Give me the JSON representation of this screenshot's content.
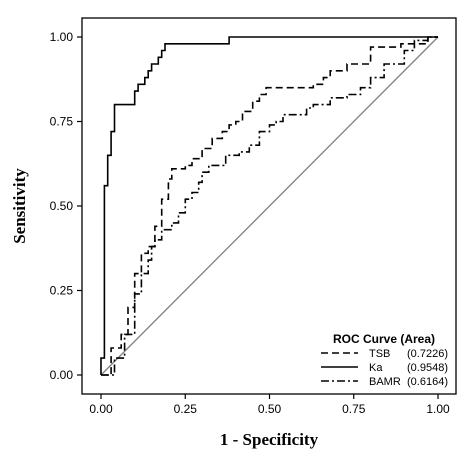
{
  "chart_data": {
    "type": "line",
    "xlabel": "1 - Specificity",
    "ylabel": "Sensitivity",
    "xlim": [
      0,
      1
    ],
    "ylim": [
      0,
      1
    ],
    "x_ticks": [
      "0.00",
      "0.25",
      "0.50",
      "0.75",
      "1.00"
    ],
    "y_ticks": [
      "0.00",
      "0.25",
      "0.50",
      "0.75",
      "1.00"
    ],
    "grid": false,
    "legend": {
      "title": "ROC Curve (Area)",
      "position": "bottom-right",
      "entries": [
        {
          "name": "TSB",
          "value": "(0.7226)",
          "dash": "dashed"
        },
        {
          "name": "Ka",
          "value": "(0.9548)",
          "dash": "solid"
        },
        {
          "name": "BAMR",
          "value": "(0.6164)",
          "dash": "dashdot"
        }
      ]
    },
    "reference_line": {
      "x": [
        0,
        1
      ],
      "y": [
        0,
        1
      ],
      "color": "#808080"
    },
    "series": [
      {
        "name": "TSB",
        "dash": "dashed",
        "color": "#000000",
        "x": [
          0,
          0.03,
          0.03,
          0.06,
          0.06,
          0.08,
          0.08,
          0.1,
          0.1,
          0.12,
          0.12,
          0.14,
          0.14,
          0.16,
          0.16,
          0.18,
          0.18,
          0.2,
          0.2,
          0.21,
          0.21,
          0.25,
          0.25,
          0.27,
          0.27,
          0.3,
          0.3,
          0.33,
          0.33,
          0.36,
          0.36,
          0.38,
          0.38,
          0.4,
          0.4,
          0.42,
          0.42,
          0.45,
          0.45,
          0.47,
          0.47,
          0.49,
          0.49,
          0.63,
          0.63,
          0.66,
          0.66,
          0.68,
          0.68,
          0.73,
          0.73,
          0.8,
          0.8,
          0.89,
          0.89,
          0.97,
          0.97,
          1.0
        ],
        "y": [
          0,
          0,
          0.08,
          0.08,
          0.12,
          0.12,
          0.2,
          0.2,
          0.3,
          0.3,
          0.36,
          0.36,
          0.38,
          0.38,
          0.44,
          0.44,
          0.52,
          0.52,
          0.58,
          0.58,
          0.61,
          0.61,
          0.62,
          0.62,
          0.64,
          0.64,
          0.67,
          0.67,
          0.7,
          0.7,
          0.72,
          0.72,
          0.74,
          0.74,
          0.75,
          0.75,
          0.78,
          0.78,
          0.81,
          0.81,
          0.83,
          0.83,
          0.85,
          0.85,
          0.86,
          0.86,
          0.88,
          0.88,
          0.9,
          0.9,
          0.92,
          0.92,
          0.97,
          0.97,
          0.98,
          0.98,
          1.0,
          1.0
        ]
      },
      {
        "name": "Ka",
        "dash": "solid",
        "color": "#000000",
        "x": [
          0,
          0,
          0.01,
          0.01,
          0.02,
          0.02,
          0.03,
          0.03,
          0.04,
          0.04,
          0.1,
          0.1,
          0.11,
          0.11,
          0.13,
          0.13,
          0.14,
          0.14,
          0.15,
          0.15,
          0.17,
          0.17,
          0.18,
          0.18,
          0.19,
          0.19,
          0.38,
          0.38,
          1.0
        ],
        "y": [
          0,
          0.05,
          0.05,
          0.56,
          0.56,
          0.65,
          0.65,
          0.72,
          0.72,
          0.8,
          0.8,
          0.84,
          0.84,
          0.86,
          0.86,
          0.88,
          0.88,
          0.9,
          0.9,
          0.92,
          0.92,
          0.94,
          0.94,
          0.96,
          0.96,
          0.98,
          0.98,
          1.0,
          1.0
        ]
      },
      {
        "name": "BAMR",
        "dash": "dashdot",
        "color": "#000000",
        "x": [
          0,
          0.04,
          0.04,
          0.07,
          0.07,
          0.1,
          0.1,
          0.12,
          0.12,
          0.14,
          0.14,
          0.15,
          0.15,
          0.16,
          0.16,
          0.18,
          0.18,
          0.21,
          0.21,
          0.23,
          0.23,
          0.25,
          0.25,
          0.27,
          0.27,
          0.29,
          0.29,
          0.3,
          0.3,
          0.32,
          0.32,
          0.37,
          0.37,
          0.41,
          0.41,
          0.44,
          0.44,
          0.47,
          0.47,
          0.5,
          0.5,
          0.52,
          0.52,
          0.54,
          0.54,
          0.61,
          0.61,
          0.63,
          0.63,
          0.68,
          0.68,
          0.73,
          0.73,
          0.77,
          0.77,
          0.8,
          0.8,
          0.84,
          0.84,
          0.9,
          0.9,
          0.93,
          0.93,
          0.97,
          0.97,
          1.0
        ],
        "y": [
          0,
          0,
          0.05,
          0.05,
          0.12,
          0.12,
          0.24,
          0.24,
          0.3,
          0.3,
          0.34,
          0.34,
          0.38,
          0.38,
          0.4,
          0.4,
          0.43,
          0.43,
          0.45,
          0.45,
          0.48,
          0.48,
          0.52,
          0.52,
          0.54,
          0.54,
          0.57,
          0.57,
          0.6,
          0.6,
          0.62,
          0.62,
          0.65,
          0.65,
          0.66,
          0.66,
          0.68,
          0.68,
          0.72,
          0.72,
          0.74,
          0.74,
          0.75,
          0.75,
          0.77,
          0.77,
          0.79,
          0.79,
          0.8,
          0.8,
          0.82,
          0.82,
          0.83,
          0.83,
          0.85,
          0.85,
          0.88,
          0.88,
          0.92,
          0.92,
          0.96,
          0.96,
          0.99,
          0.99,
          1.0,
          1.0
        ]
      }
    ]
  }
}
